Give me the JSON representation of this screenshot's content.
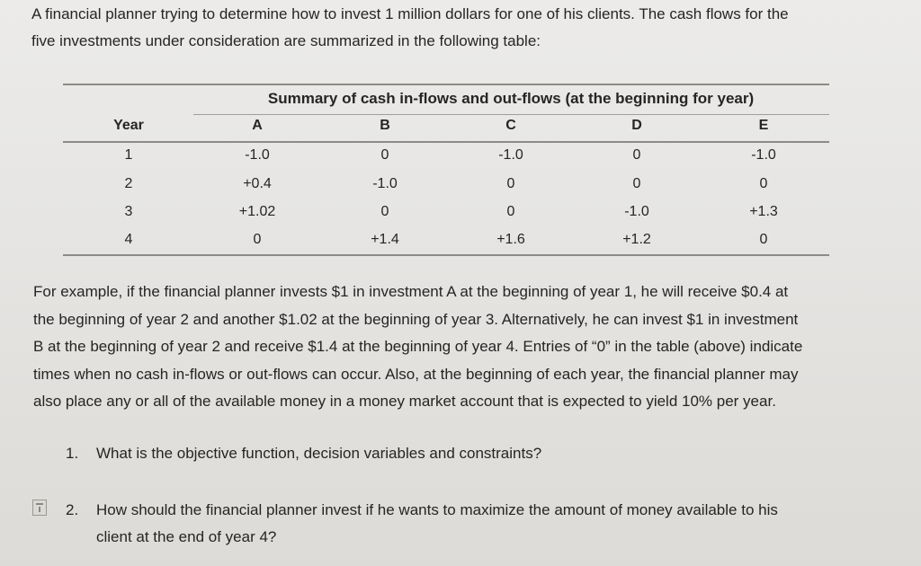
{
  "intro": {
    "line1": "A financial planner trying to determine how to invest 1 million dollars for one of his clients. The cash flows for the",
    "line2": "five investments under consideration are summarized in the following table:"
  },
  "table": {
    "title": "Summary of cash in-flows and out-flows (at the beginning for year)",
    "columns": [
      "Year",
      "A",
      "B",
      "C",
      "D",
      "E"
    ],
    "rows": [
      [
        "1",
        "-1.0",
        "0",
        "-1.0",
        "0",
        "-1.0"
      ],
      [
        "2",
        "+0.4",
        "-1.0",
        "0",
        "0",
        "0"
      ],
      [
        "3",
        "+1.02",
        "0",
        "0",
        "-1.0",
        "+1.3"
      ],
      [
        "4",
        "0",
        "+1.4",
        "+1.6",
        "+1.2",
        "0"
      ]
    ]
  },
  "paragraph": [
    "For example, if the financial planner invests $1 in investment A at the beginning of year 1, he will receive $0.4 at",
    "the beginning of year 2 and another $1.02 at the beginning of year 3. Alternatively, he can invest $1 in investment",
    "B at the beginning of year 2 and receive $1.4 at the beginning of year 4. Entries of “0” in the table (above) indicate",
    "times when no cash in-flows or out-flows can occur. Also, at the beginning of each year, the financial planner may",
    "also place any or all of the available money in a money market account that is expected to yield 10% per year."
  ],
  "questions": [
    {
      "number": "1.",
      "lines": [
        "What is the objective function, decision variables and constraints?"
      ]
    },
    {
      "number": "2.",
      "lines": [
        "How should the financial planner invest if he wants to maximize the amount of money available to his",
        "client at the end of year 4?"
      ]
    }
  ]
}
